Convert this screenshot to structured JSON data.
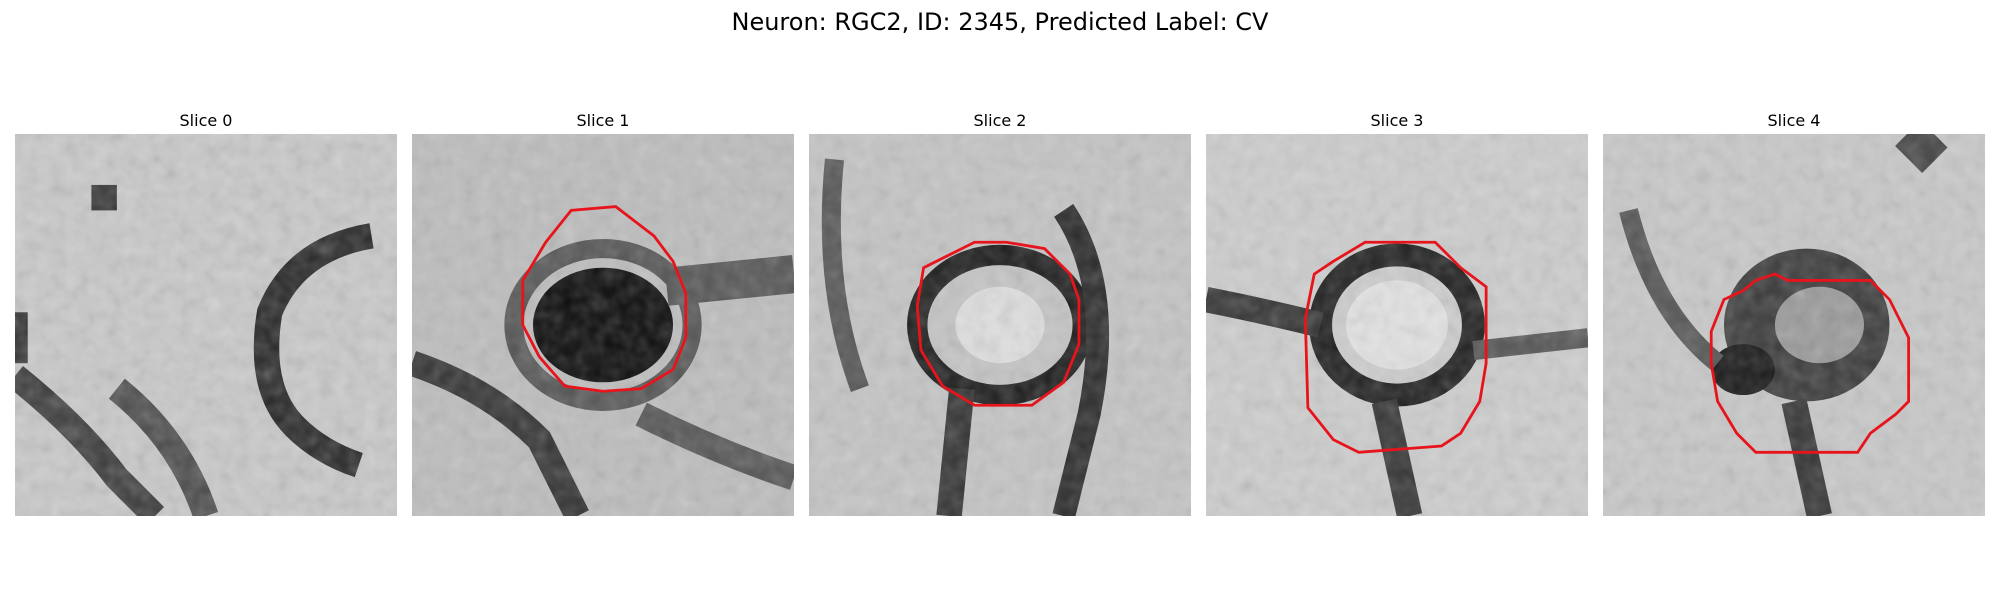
{
  "figure": {
    "title": "Neuron: RGC2, ID: 2345, Predicted Label: CV"
  },
  "panels": [
    {
      "title": "Slice 0",
      "has_outline": false
    },
    {
      "title": "Slice 1",
      "has_outline": true
    },
    {
      "title": "Slice 2",
      "has_outline": true
    },
    {
      "title": "Slice 3",
      "has_outline": true
    },
    {
      "title": "Slice 4",
      "has_outline": true
    }
  ],
  "colors": {
    "outline": "#e8141b",
    "background": "#ffffff"
  }
}
